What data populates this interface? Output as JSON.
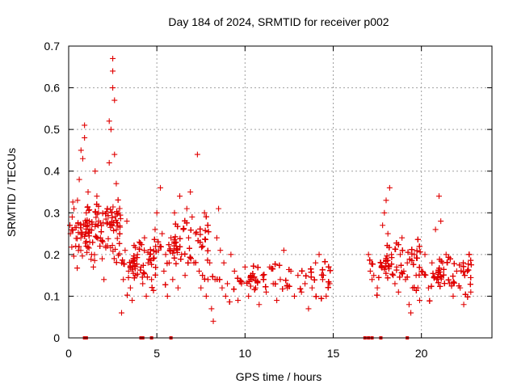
{
  "chart_data": {
    "type": "scatter",
    "title": "Day 184 of 2024, SRMTID for receiver p002",
    "xlabel": "GPS time / hours",
    "ylabel": "SRMTID / TECUs",
    "xlim": [
      0,
      24
    ],
    "ylim": [
      0,
      0.7
    ],
    "xticks": [
      0,
      5,
      10,
      15,
      20
    ],
    "xtick_labels": [
      "0",
      "5",
      "10",
      "15",
      "20"
    ],
    "yticks": [
      0,
      0.1,
      0.2,
      0.3,
      0.4,
      0.5,
      0.6,
      0.7
    ],
    "ytick_labels": [
      "0",
      "0.1",
      "0.2",
      "0.3",
      "0.4",
      "0.5",
      "0.6",
      "0.7"
    ],
    "grid": true,
    "marker": "+",
    "color": "#e00000",
    "series": [
      {
        "name": "SRMTID",
        "points": [
          [
            0.1,
            0.25
          ],
          [
            0.2,
            0.29
          ],
          [
            0.3,
            0.31
          ],
          [
            0.4,
            0.22
          ],
          [
            0.5,
            0.33
          ],
          [
            0.6,
            0.38
          ],
          [
            0.7,
            0.45
          ],
          [
            0.7,
            0.27
          ],
          [
            0.8,
            0.43
          ],
          [
            0.9,
            0.51
          ],
          [
            0.9,
            0.48
          ],
          [
            1.0,
            0.3
          ],
          [
            1.0,
            0.22
          ],
          [
            1.1,
            0.35
          ],
          [
            1.2,
            0.26
          ],
          [
            1.3,
            0.2
          ],
          [
            1.4,
            0.17
          ],
          [
            1.5,
            0.4
          ],
          [
            1.6,
            0.34
          ],
          [
            1.7,
            0.28
          ],
          [
            1.8,
            0.24
          ],
          [
            1.9,
            0.19
          ],
          [
            2.0,
            0.14
          ],
          [
            2.1,
            0.22
          ],
          [
            2.2,
            0.31
          ],
          [
            2.3,
            0.42
          ],
          [
            2.3,
            0.52
          ],
          [
            2.4,
            0.5
          ],
          [
            2.5,
            0.6
          ],
          [
            2.5,
            0.67
          ],
          [
            2.5,
            0.64
          ],
          [
            2.6,
            0.57
          ],
          [
            2.6,
            0.44
          ],
          [
            2.7,
            0.37
          ],
          [
            2.8,
            0.3
          ],
          [
            2.9,
            0.25
          ],
          [
            3.0,
            0.18
          ],
          [
            3.0,
            0.06
          ],
          [
            3.1,
            0.14
          ],
          [
            3.2,
            0.21
          ],
          [
            3.3,
            0.28
          ],
          [
            3.4,
            0.16
          ],
          [
            3.5,
            0.12
          ],
          [
            3.6,
            0.09
          ],
          [
            3.7,
            0.19
          ],
          [
            3.8,
            0.15
          ],
          [
            3.9,
            0.2
          ],
          [
            4.0,
            0.23
          ],
          [
            4.1,
            0.17
          ],
          [
            4.2,
            0.13
          ],
          [
            4.3,
            0.24
          ],
          [
            4.4,
            0.1
          ],
          [
            4.5,
            0.18
          ],
          [
            4.6,
            0.2
          ],
          [
            4.7,
            0.14
          ],
          [
            4.8,
            0.19
          ],
          [
            4.9,
            0.26
          ],
          [
            5.0,
            0.3
          ],
          [
            5.1,
            0.21
          ],
          [
            5.2,
            0.36
          ],
          [
            5.3,
            0.25
          ],
          [
            5.4,
            0.16
          ],
          [
            5.5,
            0.2
          ],
          [
            5.6,
            0.1
          ],
          [
            5.7,
            0.18
          ],
          [
            5.8,
            0.24
          ],
          [
            5.9,
            0.14
          ],
          [
            6.0,
            0.3
          ],
          [
            6.1,
            0.22
          ],
          [
            6.2,
            0.12
          ],
          [
            6.3,
            0.34
          ],
          [
            6.4,
            0.2
          ],
          [
            6.5,
            0.26
          ],
          [
            6.6,
            0.15
          ],
          [
            6.7,
            0.31
          ],
          [
            6.8,
            0.24
          ],
          [
            6.9,
            0.35
          ],
          [
            7.0,
            0.29
          ],
          [
            7.1,
            0.18
          ],
          [
            7.2,
            0.25
          ],
          [
            7.3,
            0.44
          ],
          [
            7.4,
            0.16
          ],
          [
            7.5,
            0.12
          ],
          [
            7.6,
            0.22
          ],
          [
            7.7,
            0.3
          ],
          [
            7.8,
            0.1
          ],
          [
            7.9,
            0.14
          ],
          [
            8.0,
            0.18
          ],
          [
            8.1,
            0.07
          ],
          [
            8.2,
            0.04
          ],
          [
            8.3,
            0.14
          ],
          [
            8.4,
            0.24
          ],
          [
            8.5,
            0.31
          ],
          [
            8.6,
            0.21
          ],
          [
            8.7,
            0.12
          ],
          [
            8.8,
            0.18
          ],
          [
            8.9,
            0.1
          ],
          [
            9.0,
            0.13
          ],
          [
            9.2,
            0.2
          ],
          [
            9.4,
            0.16
          ],
          [
            9.6,
            0.09
          ],
          [
            9.8,
            0.13
          ],
          [
            10.0,
            0.17
          ],
          [
            10.2,
            0.1
          ],
          [
            10.4,
            0.14
          ],
          [
            10.6,
            0.12
          ],
          [
            10.8,
            0.08
          ],
          [
            11.0,
            0.15
          ],
          [
            11.2,
            0.11
          ],
          [
            11.4,
            0.17
          ],
          [
            11.6,
            0.13
          ],
          [
            11.8,
            0.09
          ],
          [
            12.0,
            0.14
          ],
          [
            12.2,
            0.21
          ],
          [
            12.4,
            0.12
          ],
          [
            12.6,
            0.16
          ],
          [
            12.8,
            0.1
          ],
          [
            13.0,
            0.15
          ],
          [
            13.2,
            0.11
          ],
          [
            13.4,
            0.13
          ],
          [
            13.6,
            0.07
          ],
          [
            13.8,
            0.12
          ],
          [
            14.0,
            0.18
          ],
          [
            14.2,
            0.2
          ],
          [
            14.4,
            0.14
          ],
          [
            14.6,
            0.1
          ],
          [
            14.8,
            0.13
          ],
          [
            17.0,
            0.2
          ],
          [
            17.1,
            0.16
          ],
          [
            17.2,
            0.14
          ],
          [
            17.3,
            0.15
          ],
          [
            17.5,
            0.12
          ],
          [
            17.7,
            0.18
          ],
          [
            17.8,
            0.27
          ],
          [
            17.9,
            0.3
          ],
          [
            18.0,
            0.33
          ],
          [
            18.1,
            0.25
          ],
          [
            18.2,
            0.36
          ],
          [
            18.3,
            0.2
          ],
          [
            18.4,
            0.15
          ],
          [
            18.5,
            0.13
          ],
          [
            18.6,
            0.17
          ],
          [
            18.7,
            0.11
          ],
          [
            18.8,
            0.2
          ],
          [
            18.9,
            0.24
          ],
          [
            19.0,
            0.16
          ],
          [
            19.1,
            0.14
          ],
          [
            19.2,
            0.18
          ],
          [
            19.3,
            0.08
          ],
          [
            19.4,
            0.06
          ],
          [
            19.5,
            0.12
          ],
          [
            19.6,
            0.2
          ],
          [
            19.7,
            0.15
          ],
          [
            19.8,
            0.12
          ],
          [
            19.9,
            0.09
          ],
          [
            20.0,
            0.16
          ],
          [
            20.2,
            0.2
          ],
          [
            20.4,
            0.12
          ],
          [
            20.6,
            0.18
          ],
          [
            20.8,
            0.26
          ],
          [
            21.0,
            0.34
          ],
          [
            21.1,
            0.28
          ],
          [
            21.2,
            0.18
          ],
          [
            21.4,
            0.2
          ],
          [
            21.6,
            0.13
          ],
          [
            21.8,
            0.1
          ],
          [
            22.0,
            0.16
          ],
          [
            22.2,
            0.12
          ],
          [
            22.4,
            0.08
          ],
          [
            22.6,
            0.16
          ],
          [
            22.8,
            0.11
          ]
        ]
      }
    ],
    "zero_markers": [
      0.9,
      1.0,
      4.1,
      4.2,
      4.7,
      5.8,
      16.8,
      17.0,
      17.2,
      17.7,
      19.2
    ],
    "noise_segments": [
      {
        "x0": 0.0,
        "x1": 3.0,
        "ymin": 0.14,
        "ymax": 0.36
      },
      {
        "x0": 3.0,
        "x1": 5.0,
        "ymin": 0.08,
        "ymax": 0.26
      },
      {
        "x0": 5.0,
        "x1": 8.0,
        "ymin": 0.1,
        "ymax": 0.32
      },
      {
        "x0": 8.0,
        "x1": 15.0,
        "ymin": 0.07,
        "ymax": 0.2
      },
      {
        "x0": 17.0,
        "x1": 20.0,
        "ymin": 0.08,
        "ymax": 0.26
      },
      {
        "x0": 20.0,
        "x1": 22.9,
        "ymin": 0.07,
        "ymax": 0.22
      }
    ]
  }
}
